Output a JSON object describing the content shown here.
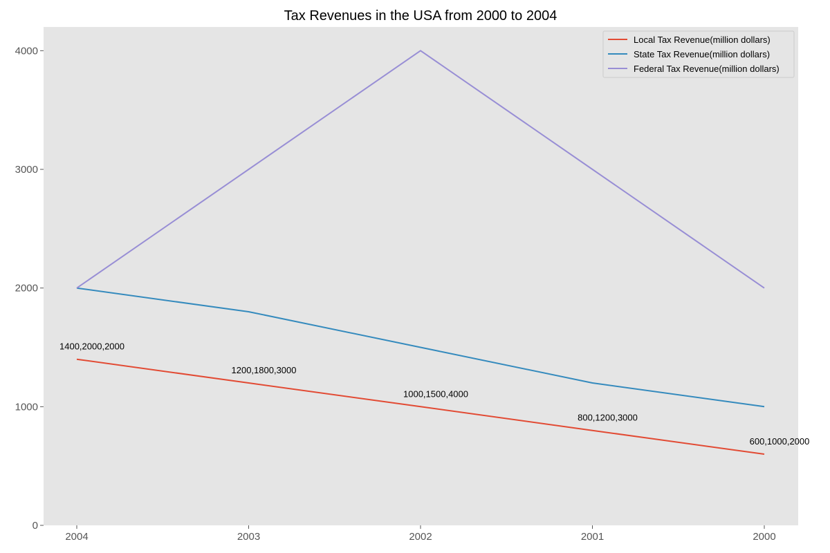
{
  "chart_data": {
    "type": "line",
    "title": "Tax Revenues in the USA from 2000 to 2004",
    "xlabel": "",
    "ylabel": "",
    "categories": [
      "2004",
      "2003",
      "2002",
      "2001",
      "2000"
    ],
    "ylim": [
      0,
      4200
    ],
    "yticks": [
      0,
      1000,
      2000,
      3000,
      4000
    ],
    "grid": false,
    "legend_position": "top-right",
    "background_color": "#e5e5e5",
    "series": [
      {
        "name": "Local Tax Revenue(million dollars)",
        "color": "#e24a33",
        "values": [
          1400,
          1200,
          1000,
          800,
          600
        ]
      },
      {
        "name": "State Tax Revenue(million dollars)",
        "color": "#348abd",
        "values": [
          2000,
          1800,
          1500,
          1200,
          1000
        ]
      },
      {
        "name": "Federal Tax Revenue(million dollars)",
        "color": "#988ed5",
        "values": [
          2000,
          3000,
          4000,
          3000,
          2000
        ]
      }
    ],
    "annotations": [
      "1400,2000,2000",
      "1200,1800,3000",
      "1000,1500,4000",
      "800,1200,3000",
      "600,1000,2000"
    ]
  }
}
